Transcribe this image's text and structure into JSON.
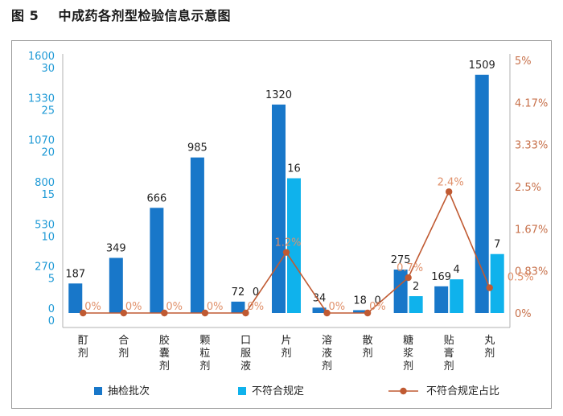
{
  "figure_title": "图 5    中成药各剂型检验信息示意图",
  "chart_data": {
    "type": "bar",
    "categories": [
      [
        "酊",
        "剂"
      ],
      [
        "合",
        "剂"
      ],
      [
        "胶",
        "囊",
        "剂"
      ],
      [
        "颗",
        "粒",
        "剂"
      ],
      [
        "口",
        "服",
        "液"
      ],
      [
        "片",
        "剂"
      ],
      [
        "溶",
        "液",
        "剂"
      ],
      [
        "散",
        "剂"
      ],
      [
        "糖",
        "浆",
        "剂"
      ],
      [
        "贴",
        "膏",
        "剂"
      ],
      [
        "丸",
        "剂"
      ]
    ],
    "series": [
      {
        "name": "抽检批次",
        "values": [
          187,
          349,
          666,
          985,
          72,
          1320,
          34,
          18,
          275,
          169,
          1509
        ],
        "labels": [
          "187",
          "349",
          "666",
          "985",
          "72",
          "1320",
          "34",
          "18",
          "275",
          "169",
          "1509"
        ],
        "color": "#1877c9",
        "axis": "left-outer"
      },
      {
        "name": "不符合规定",
        "values": [
          0,
          0,
          0,
          0,
          0,
          16,
          0,
          0,
          2,
          4,
          7
        ],
        "labels": [
          "",
          "",
          "",
          "",
          "0",
          "16",
          "",
          "0",
          "2",
          "4",
          "7"
        ],
        "color": "#0fb2ec",
        "axis": "left-inner"
      },
      {
        "name": "不符合规定占比",
        "values": [
          0,
          0,
          0,
          0,
          0,
          1.2,
          0,
          0,
          0.7,
          2.4,
          0.5
        ],
        "labels": [
          "0%",
          "0%",
          "0%",
          "0%",
          "0%",
          "1.2%",
          "0%",
          "0%",
          "0.7%",
          "2.4%",
          "0.5%"
        ],
        "color": "#c05a32",
        "axis": "right"
      }
    ],
    "y_left_outer": {
      "ylim": [
        0,
        1600
      ],
      "ticks": [
        "0",
        "270",
        "530",
        "800",
        "1070",
        "1330",
        "1600"
      ]
    },
    "y_left_inner": {
      "ylim": [
        0,
        30
      ],
      "ticks": [
        "0",
        "5",
        "10",
        "15",
        "20",
        "25",
        "30"
      ]
    },
    "y_right": {
      "ylim": [
        0,
        5
      ],
      "ticks": [
        "0%",
        "0.83%",
        "1.67%",
        "2.5%",
        "3.33%",
        "4.17%",
        "5%"
      ]
    },
    "legend_position": "bottom",
    "grid": false
  }
}
